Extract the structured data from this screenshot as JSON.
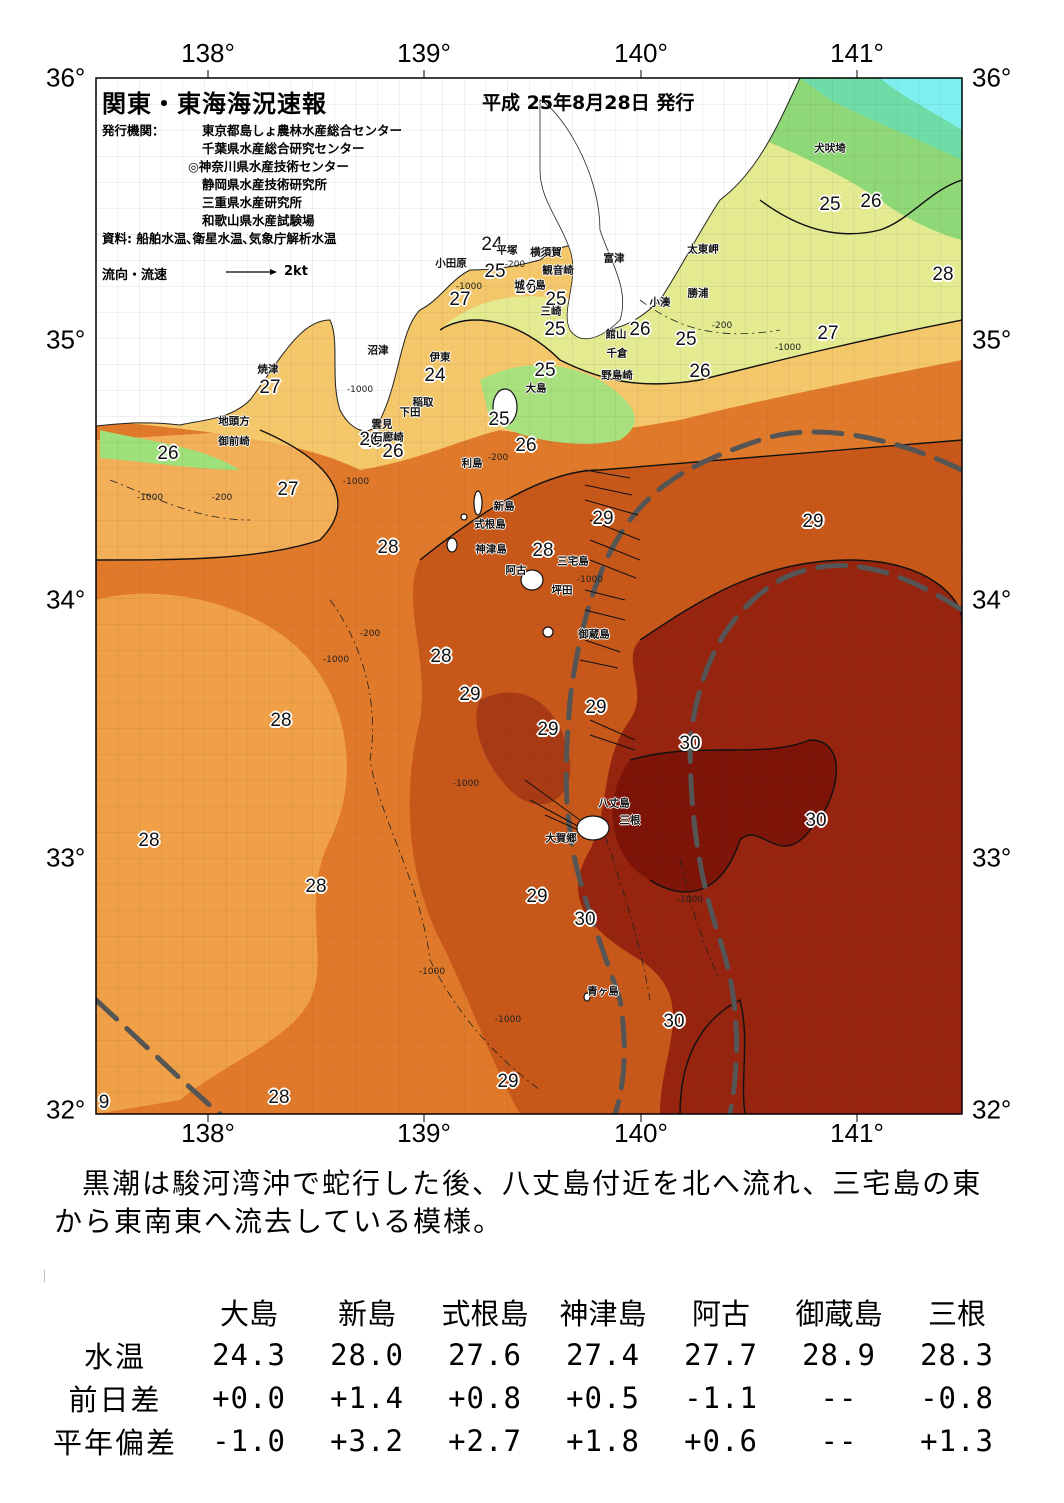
{
  "title": "関東・東海海況速報",
  "issue_date": "平成 25年8月28日 発行",
  "issuer_label": "発行機関：",
  "issuers": [
    "東京都島しょ農林水産総合センター",
    "千葉県水産総合研究センター",
    "◎神奈川県水産技術センター",
    "静岡県水産技術研究所",
    "三重県水産研究所",
    "和歌山県水産試験場"
  ],
  "source": "資料: 船舶水温､衛星水温､気象庁解析水温",
  "legend_label": "流向・流速",
  "legend_scale": "2kt",
  "lon_labels": [
    "138°",
    "139°",
    "140°",
    "141°"
  ],
  "lat_labels": [
    "36°",
    "35°",
    "34°",
    "33°",
    "32°"
  ],
  "isotherm_labels": [
    "24",
    "25",
    "26",
    "25",
    "25",
    "25",
    "24",
    "25",
    "26",
    "25",
    "26",
    "27",
    "26",
    "26",
    "25",
    "26",
    "25",
    "26",
    "27",
    "27",
    "26",
    "28",
    "27",
    "28",
    "28",
    "29",
    "29",
    "28",
    "28",
    "29",
    "29",
    "28",
    "29",
    "30",
    "30",
    "28",
    "28",
    "29",
    "30",
    "29",
    "30",
    "28",
    "9"
  ],
  "place_labels": [
    "犬吠埼",
    "太東岬",
    "勝浦",
    "小湊",
    "富津",
    "横須賀",
    "観音崎",
    "城ヶ島",
    "三崎",
    "館山",
    "千倉",
    "野島崎",
    "小田原",
    "平塚",
    "沼津",
    "伊東",
    "稲取",
    "下田",
    "雲見",
    "石廊崎",
    "焼津",
    "地頭方",
    "御前崎",
    "大島",
    "利島",
    "新島",
    "式根島",
    "神津島",
    "三宅島",
    "阿古",
    "坪田",
    "御蔵島",
    "八丈島",
    "三根",
    "大賀郷",
    "青ヶ島"
  ],
  "depth_labels": [
    "-200",
    "-1000",
    "-200",
    "-1000",
    "-1000",
    "-200",
    "-1000",
    "-200",
    "-1000",
    "-200",
    "-1000",
    "-1000",
    "-1000",
    "-1000",
    "-1000",
    "-1000"
  ],
  "comment": [
    "黒潮は駿河湾沖で蛇行した後、八丈島付近を北へ流れ、三宅島の東",
    "から東南東へ流去している模様。"
  ],
  "table": {
    "stations": [
      "大島",
      "新島",
      "式根島",
      "神津島",
      "阿古",
      "御蔵島",
      "三根"
    ],
    "rows": [
      {
        "label": "水温",
        "values": [
          "24.3",
          "28.0",
          "27.6",
          "27.4",
          "27.7",
          "28.9",
          "28.3"
        ]
      },
      {
        "label": "前日差",
        "values": [
          "+0.0",
          "+1.4",
          "+0.8",
          "+0.5",
          "-1.1",
          "--",
          "-0.8"
        ]
      },
      {
        "label": "平年偏差",
        "values": [
          "-1.0",
          "+3.2",
          "+2.7",
          "+1.8",
          "+0.6",
          "--",
          "+1.3"
        ]
      }
    ]
  },
  "colors": {
    "c24": "#5fd6a8",
    "c25": "#9ee07a",
    "c26": "#e6ec8e",
    "c27": "#f7d57a",
    "c28": "#f3a64a",
    "c28b": "#e88432",
    "c29": "#d4621c",
    "c29b": "#b8471a",
    "c30": "#8e1c0c",
    "kuroshio": "#4a4a4a",
    "land": "#ffffff"
  }
}
